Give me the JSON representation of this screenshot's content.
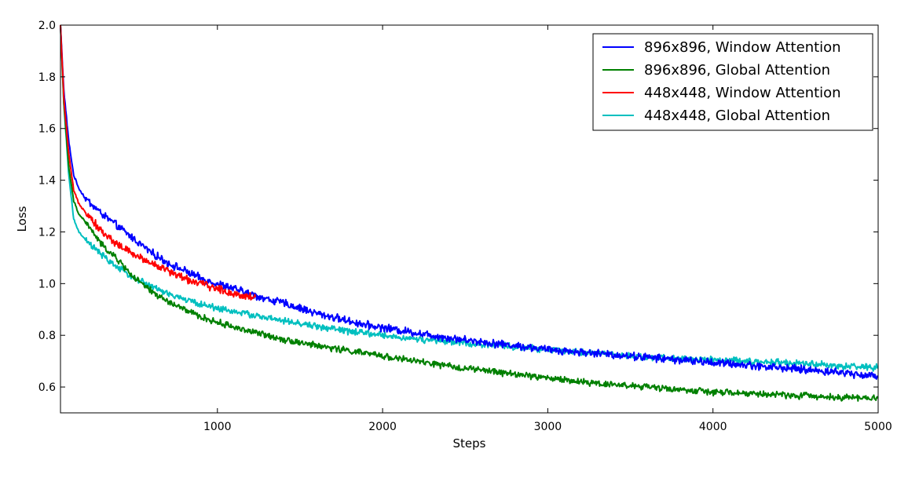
{
  "chart_data": {
    "type": "line",
    "title": "",
    "xlabel": "Steps",
    "ylabel": "Loss",
    "xlim": [
      50,
      5000
    ],
    "ylim": [
      0.5,
      2.0
    ],
    "xticks": [
      1000,
      2000,
      3000,
      4000,
      5000
    ],
    "yticks": [
      0.6,
      0.8,
      1.0,
      1.2,
      1.4,
      1.6,
      1.8,
      2.0
    ],
    "xtick_labels": [
      "1000",
      "2000",
      "3000",
      "4000",
      "5000"
    ],
    "ytick_labels": [
      "0.6",
      "0.8",
      "1.0",
      "1.2",
      "1.4",
      "1.6",
      "1.8",
      "2.0"
    ],
    "grid": false,
    "legend_position": "top-right",
    "series": [
      {
        "name": "896x896, Window Attention",
        "color": "#0000ff",
        "noise": 0.012,
        "x": [
          50,
          70,
          100,
          130,
          160,
          200,
          300,
          400,
          500,
          600,
          700,
          800,
          900,
          1000,
          1100,
          1200,
          1300,
          1400,
          1500,
          1600,
          1700,
          1800,
          1900,
          2000,
          2200,
          2400,
          2600,
          2800,
          3000,
          3200,
          3400,
          3600,
          3800,
          4000,
          4200,
          4400,
          4600,
          4800,
          5000
        ],
        "y": [
          2.0,
          1.75,
          1.55,
          1.42,
          1.37,
          1.33,
          1.27,
          1.22,
          1.17,
          1.12,
          1.08,
          1.05,
          1.02,
          1.0,
          0.98,
          0.96,
          0.94,
          0.925,
          0.905,
          0.885,
          0.87,
          0.855,
          0.84,
          0.83,
          0.81,
          0.79,
          0.775,
          0.76,
          0.745,
          0.735,
          0.725,
          0.715,
          0.705,
          0.695,
          0.685,
          0.675,
          0.665,
          0.655,
          0.64
        ]
      },
      {
        "name": "896x896, Global Attention",
        "color": "#008000",
        "noise": 0.01,
        "x": [
          50,
          70,
          100,
          130,
          160,
          200,
          300,
          400,
          500,
          600,
          700,
          800,
          900,
          1000,
          1200,
          1400,
          1600,
          1800,
          2000,
          2200,
          2400,
          2600,
          2800,
          3000,
          3200,
          3400,
          3600,
          3800,
          4000,
          4200,
          4400,
          4600,
          4800,
          5000
        ],
        "y": [
          2.0,
          1.7,
          1.45,
          1.32,
          1.27,
          1.24,
          1.15,
          1.09,
          1.02,
          0.97,
          0.93,
          0.9,
          0.87,
          0.85,
          0.815,
          0.785,
          0.76,
          0.74,
          0.72,
          0.7,
          0.68,
          0.665,
          0.65,
          0.635,
          0.62,
          0.61,
          0.6,
          0.59,
          0.58,
          0.575,
          0.57,
          0.565,
          0.56,
          0.555
        ]
      },
      {
        "name": "448x448, Window Attention",
        "color": "#ff0000",
        "noise": 0.012,
        "x": [
          50,
          70,
          100,
          130,
          160,
          200,
          300,
          400,
          500,
          600,
          700,
          800,
          900,
          1000,
          1100,
          1200,
          1230
        ],
        "y": [
          2.0,
          1.72,
          1.5,
          1.36,
          1.31,
          1.28,
          1.2,
          1.15,
          1.11,
          1.08,
          1.05,
          1.02,
          1.0,
          0.98,
          0.96,
          0.95,
          0.945
        ]
      },
      {
        "name": "448x448, Global Attention",
        "color": "#00bfbf",
        "noise": 0.01,
        "x": [
          50,
          70,
          100,
          130,
          160,
          200,
          300,
          400,
          500,
          600,
          700,
          800,
          900,
          1000,
          1200,
          1400,
          1600,
          1800,
          2000,
          2200,
          2400,
          2600,
          2800,
          3000,
          3200,
          3400,
          3600,
          3800,
          4000,
          4200,
          4400,
          4600,
          4800,
          5000
        ],
        "y": [
          2.0,
          1.7,
          1.42,
          1.25,
          1.2,
          1.17,
          1.11,
          1.06,
          1.02,
          0.99,
          0.96,
          0.94,
          0.92,
          0.905,
          0.88,
          0.855,
          0.835,
          0.815,
          0.8,
          0.785,
          0.775,
          0.765,
          0.755,
          0.745,
          0.735,
          0.725,
          0.715,
          0.71,
          0.705,
          0.7,
          0.695,
          0.69,
          0.68,
          0.675
        ]
      }
    ]
  }
}
